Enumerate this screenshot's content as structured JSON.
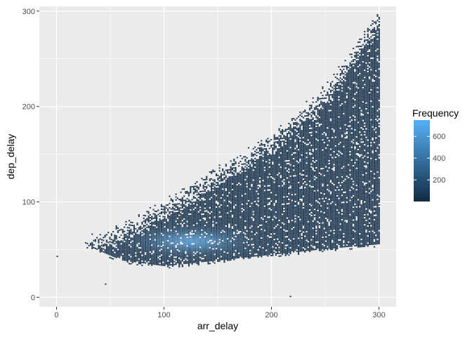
{
  "chart_data": {
    "type": "heatmap",
    "xlabel": "arr_delay",
    "ylabel": "dep_delay",
    "x_ticks": [
      0,
      100,
      200,
      300
    ],
    "y_ticks": [
      0,
      100,
      200,
      300
    ],
    "xlim": [
      -16,
      316
    ],
    "ylim": [
      -10,
      305
    ],
    "grid": true,
    "legend": {
      "title": "Frequency",
      "position": "right",
      "ticks": [
        200,
        400,
        600
      ],
      "range": [
        1,
        750
      ],
      "low_color": "#132B43",
      "high_color": "#56B1F7"
    },
    "density_summary": {
      "lower_boundary_dep_delay_approx": [
        [
          25,
          55
        ],
        [
          60,
          38
        ],
        [
          100,
          32
        ],
        [
          150,
          38
        ],
        [
          200,
          44
        ],
        [
          250,
          50
        ],
        [
          300,
          55
        ]
      ],
      "upper_boundary_dep_delay_approx": [
        [
          25,
          60
        ],
        [
          60,
          75
        ],
        [
          100,
          100
        ],
        [
          150,
          135
        ],
        [
          200,
          170
        ],
        [
          250,
          220
        ],
        [
          300,
          300
        ]
      ],
      "peak_frequency_location": {
        "arr_delay": 125,
        "dep_delay": 58
      },
      "peak_frequency": 750
    },
    "outliers": [
      {
        "arr_delay": 0,
        "dep_delay": 42
      },
      {
        "arr_delay": 45,
        "dep_delay": 13
      },
      {
        "arr_delay": 217,
        "dep_delay": 0
      }
    ]
  },
  "colors": {
    "panel_background": "#EBEBEB",
    "grid_major": "#FFFFFF",
    "axis_text": "#4D4D4D"
  }
}
